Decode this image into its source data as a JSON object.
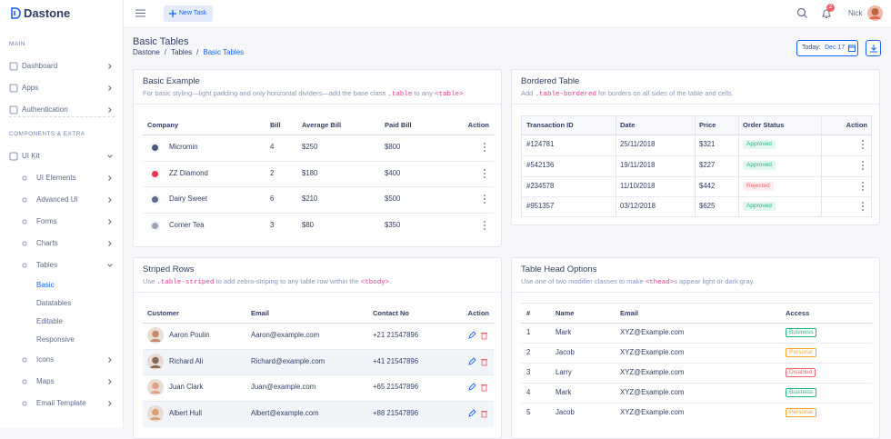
{
  "brand": "Dastone",
  "topbar": {
    "new_task": "New Task",
    "notifications": "2",
    "user": "Nick"
  },
  "sidebar": {
    "sections": [
      {
        "title": "MAIN",
        "items": [
          {
            "label": "Dashboard",
            "arrow": true
          },
          {
            "label": "Apps",
            "arrow": true
          },
          {
            "label": "Authentication",
            "arrow": true
          }
        ]
      },
      {
        "title": "COMPONENTS & EXTRA",
        "items": [
          {
            "label": "UI Kit",
            "arrow": true,
            "open": true,
            "children": [
              {
                "label": "UI Elements",
                "arrow": true
              },
              {
                "label": "Advanced UI",
                "arrow": true
              },
              {
                "label": "Forms",
                "arrow": true
              },
              {
                "label": "Charts",
                "arrow": true
              },
              {
                "label": "Tables",
                "arrow": true,
                "open": true,
                "children": [
                  {
                    "label": "Basic",
                    "active": true
                  },
                  {
                    "label": "Datatables"
                  },
                  {
                    "label": "Editable"
                  },
                  {
                    "label": "Responsive"
                  }
                ]
              },
              {
                "label": "Icons",
                "arrow": true
              },
              {
                "label": "Maps",
                "arrow": true
              },
              {
                "label": "Email Template",
                "arrow": true
              }
            ]
          }
        ]
      }
    ]
  },
  "page": {
    "title": "Basic Tables",
    "breadcrumb": [
      "Dastone",
      "Tables",
      "Basic Tables"
    ],
    "date_label": "Today:",
    "date": "Dec 17"
  },
  "cards": [
    {
      "title": "Basic Example",
      "description": [
        {
          "text": "For basic styling—light padding and only horizontal dividers—add the base class "
        },
        {
          "code": ".table"
        },
        {
          "text": " to any "
        },
        {
          "code": "<table>"
        },
        {
          "text": "."
        }
      ],
      "columns": [
        "Company",
        "Bill",
        "Average Bill",
        "Paid Bill",
        "Action"
      ],
      "rows": [
        [
          "Micromin",
          "4",
          "$250",
          "$800"
        ],
        [
          "ZZ Diamond",
          "2",
          "$180",
          "$400"
        ],
        [
          "Dairy Sweet",
          "6",
          "$210",
          "$500"
        ],
        [
          "Corner Tea",
          "3",
          "$80",
          "$350"
        ]
      ]
    },
    {
      "title": "Bordered Table",
      "description": [
        {
          "text": "Add "
        },
        {
          "code": ".table-bordered"
        },
        {
          "text": " for borders on all sides of the table and cells."
        }
      ],
      "columns": [
        "Transaction ID",
        "Date",
        "Price",
        "Order Status",
        "Action"
      ],
      "rows": [
        [
          "#124781",
          "25/11/2018",
          "$321",
          {
            "text": "Approved",
            "color": "#22b783"
          }
        ],
        [
          "#542136",
          "19/11/2018",
          "$227",
          {
            "text": "Approved",
            "color": "#22b783"
          }
        ],
        [
          "#234578",
          "11/10/2018",
          "$442",
          {
            "text": "Rejected",
            "color": "#f1646c"
          }
        ],
        [
          "#951357",
          "03/12/2018",
          "$625",
          {
            "text": "Approved",
            "color": "#22b783"
          }
        ]
      ]
    },
    {
      "title": "Striped Rows",
      "description": [
        {
          "text": "Use "
        },
        {
          "code": ".table-striped"
        },
        {
          "text": " to add zebra-striping to any table row within the "
        },
        {
          "code": "<tbody>"
        },
        {
          "text": "."
        }
      ],
      "columns": [
        "Customer",
        "Email",
        "Contact No",
        "Action"
      ],
      "rows": [
        [
          "Aaron Poulin",
          "Aaron@example.com",
          "+21 21547896"
        ],
        [
          "Richard Ali",
          "Richard@example.com",
          "+41 21547896"
        ],
        [
          "Juan Clark",
          "Juan@example.com",
          "+65 21547896"
        ],
        [
          "Albert Hull",
          "Albert@example.com",
          "+88 21547896"
        ]
      ]
    },
    {
      "title": "Table Head Options",
      "description": [
        {
          "text": "Use one of two modifier classes to make "
        },
        {
          "code": "<thead>"
        },
        {
          "text": "s appear light or dark gray."
        }
      ],
      "columns": [
        "#",
        "Name",
        "Email",
        "Access"
      ],
      "rows": [
        [
          "1",
          "Mark",
          "XYZ@Example.com",
          {
            "text": "Business",
            "color": "#22b783"
          }
        ],
        [
          "2",
          "Jacob",
          "XYZ@Example.com",
          {
            "text": "Personal",
            "color": "#ffa52b"
          }
        ],
        [
          "3",
          "Larry",
          "XYZ@Example.com",
          {
            "text": "Disabled",
            "color": "#f1646c"
          }
        ],
        [
          "4",
          "Mark",
          "XYZ@Example.com",
          {
            "text": "Business",
            "color": "#22b783"
          }
        ],
        [
          "5",
          "Jacob",
          "XYZ@Example.com",
          {
            "text": "Personal",
            "color": "#ffa52b"
          }
        ]
      ]
    }
  ]
}
